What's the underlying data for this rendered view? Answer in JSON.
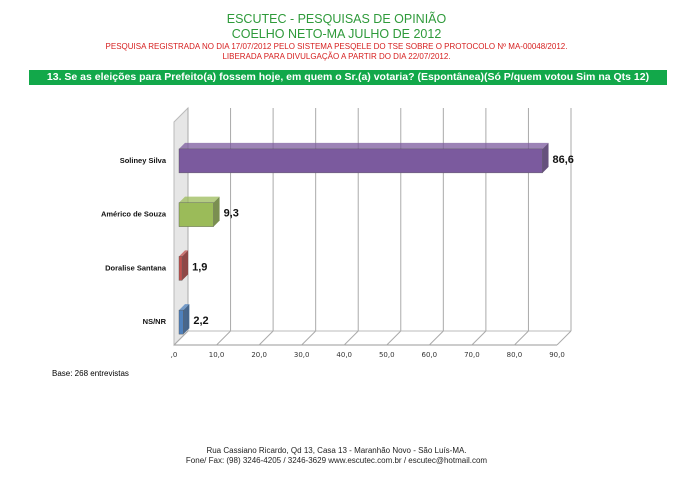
{
  "header": {
    "title": "ESCUTEC - PESQUISAS DE OPINIÃO",
    "subtitle": "COELHO NETO-MA JULHO DE 2012",
    "registration": "PESQUISA REGISTRADA NO DIA 17/07/2012 PELO SISTEMA PESQELE DO TSE SOBRE O PROTOCOLO Nº MA-00048/2012.",
    "release": "LIBERADA PARA DIVULGAÇÃO A PARTIR DO DIA 22/07/2012."
  },
  "question": "13. Se as eleições para Prefeito(a) fossem hoje, em quem o Sr.(a) votaria? (Espontânea)(Só P/quem votou Sim na Qts 12)",
  "base": "Base: 268 entrevistas",
  "footer": {
    "address": "Rua Cassiano Ricardo, Qd 13, Casa 13 - Maranhão Novo - São Luís-MA.",
    "contact": "Fone/ Fax: (98) 3246-4205 / 3246-3629 www.escutec.com.br / escutec@hotmail.com"
  },
  "chart_data": {
    "type": "bar",
    "orientation": "horizontal",
    "3d": true,
    "categories": [
      "Soliney Silva",
      "Américo de Souza",
      "Doralise Santana",
      "NS/NR"
    ],
    "values": [
      86.6,
      9.3,
      1.9,
      2.2
    ],
    "value_labels": [
      "86,6",
      "9,3",
      "1,9",
      "2,2"
    ],
    "colors": [
      "#7b5a9e",
      "#9bbb59",
      "#c0504d",
      "#4f81bd"
    ],
    "xlim": [
      0,
      90
    ],
    "tick_labels": [
      ",0",
      "10,0",
      "20,0",
      "30,0",
      "40,0",
      "50,0",
      "60,0",
      "70,0",
      "80,0",
      "90,0"
    ],
    "grid": true
  }
}
